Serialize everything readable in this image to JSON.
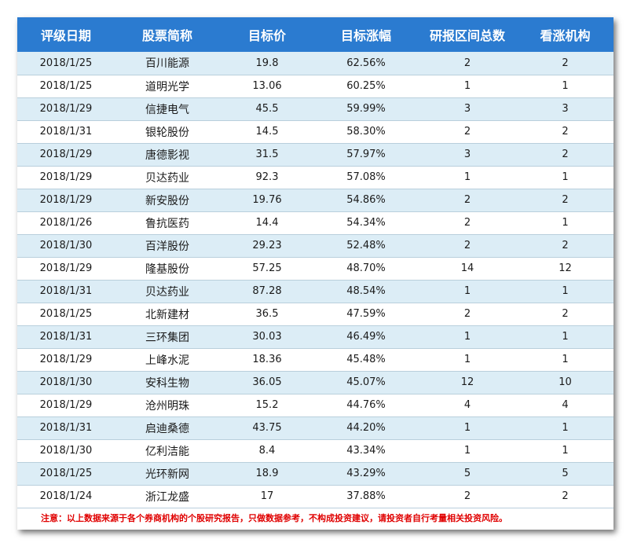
{
  "table": {
    "headers": [
      "评级日期",
      "股票简称",
      "目标价",
      "目标涨幅",
      "研报区间总数",
      "看涨机构"
    ],
    "rows": [
      [
        "2018/1/25",
        "百川能源",
        "19.8",
        "62.56%",
        "2",
        "2"
      ],
      [
        "2018/1/25",
        "道明光学",
        "13.06",
        "60.25%",
        "1",
        "1"
      ],
      [
        "2018/1/29",
        "信捷电气",
        "45.5",
        "59.99%",
        "3",
        "3"
      ],
      [
        "2018/1/31",
        "银轮股份",
        "14.5",
        "58.30%",
        "2",
        "2"
      ],
      [
        "2018/1/29",
        "唐德影视",
        "31.5",
        "57.97%",
        "3",
        "2"
      ],
      [
        "2018/1/29",
        "贝达药业",
        "92.3",
        "57.08%",
        "1",
        "1"
      ],
      [
        "2018/1/29",
        "新安股份",
        "19.76",
        "54.86%",
        "2",
        "2"
      ],
      [
        "2018/1/26",
        "鲁抗医药",
        "14.4",
        "54.34%",
        "2",
        "1"
      ],
      [
        "2018/1/30",
        "百洋股份",
        "29.23",
        "52.48%",
        "2",
        "2"
      ],
      [
        "2018/1/29",
        "隆基股份",
        "57.25",
        "48.70%",
        "14",
        "12"
      ],
      [
        "2018/1/31",
        "贝达药业",
        "87.28",
        "48.54%",
        "1",
        "1"
      ],
      [
        "2018/1/25",
        "北新建材",
        "36.5",
        "47.59%",
        "2",
        "2"
      ],
      [
        "2018/1/31",
        "三环集团",
        "30.03",
        "46.49%",
        "1",
        "1"
      ],
      [
        "2018/1/29",
        "上峰水泥",
        "18.36",
        "45.48%",
        "1",
        "1"
      ],
      [
        "2018/1/30",
        "安科生物",
        "36.05",
        "45.07%",
        "12",
        "10"
      ],
      [
        "2018/1/29",
        "沧州明珠",
        "15.2",
        "44.76%",
        "4",
        "4"
      ],
      [
        "2018/1/31",
        "启迪桑德",
        "43.75",
        "44.20%",
        "1",
        "1"
      ],
      [
        "2018/1/30",
        "亿利洁能",
        "8.4",
        "43.34%",
        "1",
        "1"
      ],
      [
        "2018/1/25",
        "光环新网",
        "18.9",
        "43.29%",
        "5",
        "5"
      ],
      [
        "2018/1/24",
        "浙江龙盛",
        "17",
        "37.88%",
        "2",
        "2"
      ]
    ]
  },
  "note": "注意：以上数据来源于各个券商机构的个股研究报告，只做数据参考，不构成投资建议，请投资者自行考量相关投资风险。",
  "colors": {
    "header_bg": "#2b7bd0",
    "row_alt_bg": "#dcedf6",
    "note_text": "#e00000"
  }
}
